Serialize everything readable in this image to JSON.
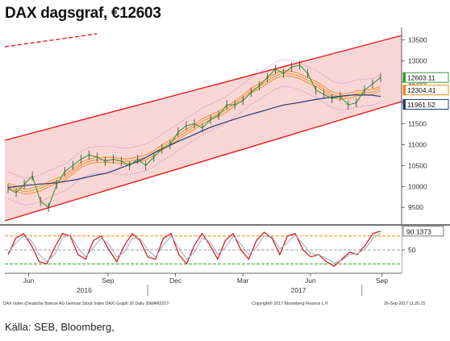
{
  "title": "DAX dagsgraf, €12603",
  "source": "Källa: SEB, Bloomberg,",
  "chart_data": [
    {
      "type": "line",
      "panel": "price",
      "ylim": [
        9100,
        13800
      ],
      "y_ticks": [
        "13500",
        "13000",
        "12500",
        "12000",
        "11500",
        "11000",
        "10500",
        "10000",
        "9500"
      ],
      "price_tags": [
        {
          "label": "12603.11",
          "value": 12603,
          "color": "#2e9e2e"
        },
        {
          "label": "12304.41",
          "value": 12304,
          "color": "#f08a18"
        },
        {
          "label": "11961.52",
          "value": 11961,
          "color": "#1f3a78"
        }
      ],
      "price_series": [
        9950,
        9850,
        10050,
        10250,
        9650,
        9500,
        10050,
        10350,
        10500,
        10650,
        10750,
        10700,
        10600,
        10650,
        10600,
        10500,
        10650,
        10500,
        10700,
        10900,
        11000,
        11300,
        11450,
        11500,
        11400,
        11600,
        11700,
        11950,
        11950,
        12050,
        12250,
        12400,
        12600,
        12800,
        12700,
        12850,
        12900,
        12700,
        12300,
        12200,
        12100,
        12150,
        11950,
        12000,
        12300,
        12450,
        12603
      ],
      "colors": {
        "price": "#2e9e2e",
        "channel": "#e31c1c",
        "fill": "#f9d6d6",
        "ma_long": "#1f3a78",
        "bollinger": "#c26ac2",
        "ma_band": "#f08a18"
      }
    },
    {
      "type": "line",
      "panel": "oscillator",
      "ylim": [
        0,
        100
      ],
      "y_ticks": [
        "50"
      ],
      "levels": [
        80,
        50,
        20
      ],
      "value_tag": "90.1373",
      "series": [
        {
          "values": [
            40,
            75,
            85,
            60,
            25,
            20,
            55,
            85,
            80,
            40,
            30,
            70,
            80,
            50,
            25,
            60,
            85,
            70,
            35,
            30,
            75,
            85,
            40,
            20,
            60,
            85,
            60,
            30,
            70,
            85,
            50,
            30,
            70,
            88,
            75,
            40,
            80,
            85,
            50,
            35,
            40,
            25,
            15,
            30,
            45,
            40,
            60,
            85,
            90
          ]
        },
        {
          "values": [
            45,
            65,
            80,
            70,
            40,
            25,
            40,
            75,
            82,
            55,
            35,
            55,
            75,
            62,
            35,
            45,
            75,
            75,
            50,
            35,
            60,
            80,
            55,
            30,
            45,
            75,
            68,
            40,
            55,
            80,
            62,
            40,
            55,
            80,
            78,
            52,
            65,
            82,
            62,
            42,
            40,
            32,
            22,
            28,
            40,
            42,
            52,
            75,
            86
          ]
        }
      ],
      "colors": {
        "fast": "#d62020",
        "slow": "#a0a8b8",
        "upper": "#f08a18",
        "mid": "#9aa0a8",
        "lower": "#2e9e2e"
      }
    }
  ],
  "x_axis": {
    "months": [
      {
        "label": "Jun",
        "pos": 0.06
      },
      {
        "label": "Sep",
        "pos": 0.26
      },
      {
        "label": "Dec",
        "pos": 0.43
      },
      {
        "label": "Mar",
        "pos": 0.6
      },
      {
        "label": "Jun",
        "pos": 0.77
      },
      {
        "label": "Sep",
        "pos": 0.95
      }
    ],
    "years": [
      {
        "label": "2016",
        "pos": 0.2
      },
      {
        "label": "2017",
        "pos": 0.74
      }
    ]
  },
  "footer": {
    "left": "DAX Index (Deutsche Boerse AG German Stock Index DAX) Graph 26  Daily 30MAR2017-",
    "mid": "Copyright© 2017 Bloomberg Finance L.P.",
    "right": "26-Sep-2017 11:26:15"
  }
}
